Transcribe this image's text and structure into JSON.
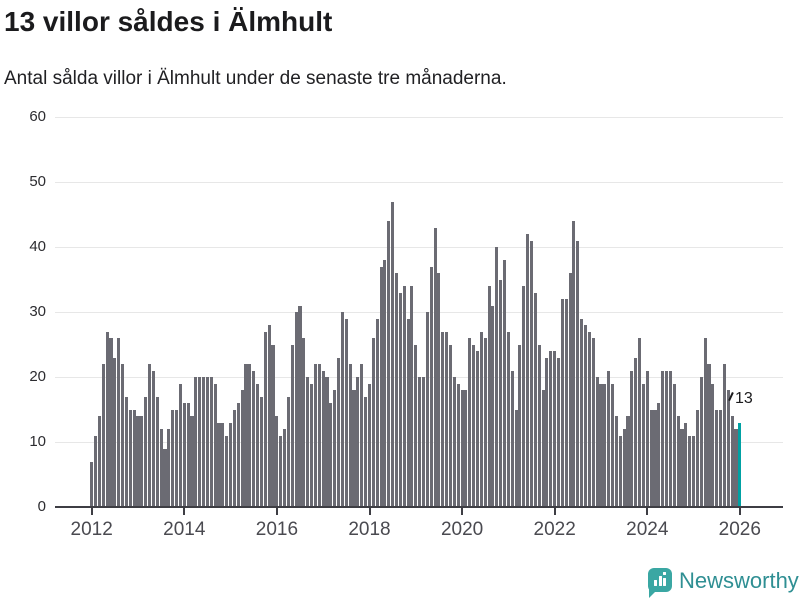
{
  "header": {
    "title": "13 villor såldes i Älmhult",
    "subtitle": "Antal sålda villor i Älmhult under de senaste tre månaderna."
  },
  "chart_data": {
    "type": "bar",
    "title": "13 villor såldes i Älmhult",
    "subtitle": "Antal sålda villor i Älmhult under de senaste tre månaderna.",
    "x_start_label": "2012",
    "x_tick_labels": [
      "2012",
      "2014",
      "2016",
      "2018",
      "2020",
      "2022",
      "2024",
      "2026"
    ],
    "y_ticks": [
      0,
      10,
      20,
      30,
      40,
      50,
      60
    ],
    "ylim": [
      0,
      60
    ],
    "grid": true,
    "frequency": "monthly",
    "values": [
      7,
      11,
      14,
      22,
      27,
      26,
      23,
      26,
      22,
      17,
      15,
      15,
      14,
      14,
      17,
      22,
      21,
      17,
      12,
      9,
      12,
      15,
      15,
      19,
      16,
      16,
      14,
      20,
      20,
      20,
      20,
      20,
      19,
      13,
      13,
      11,
      13,
      15,
      16,
      18,
      22,
      22,
      21,
      19,
      17,
      27,
      28,
      25,
      14,
      11,
      12,
      17,
      25,
      30,
      31,
      26,
      20,
      19,
      22,
      22,
      21,
      20,
      16,
      18,
      23,
      30,
      29,
      22,
      18,
      20,
      22,
      17,
      19,
      26,
      29,
      37,
      38,
      44,
      47,
      36,
      33,
      34,
      29,
      34,
      25,
      20,
      20,
      30,
      37,
      43,
      36,
      27,
      27,
      25,
      20,
      19,
      18,
      18,
      26,
      25,
      24,
      27,
      26,
      34,
      31,
      40,
      35,
      38,
      27,
      21,
      15,
      25,
      34,
      42,
      41,
      33,
      25,
      18,
      23,
      24,
      24,
      23,
      32,
      32,
      36,
      44,
      41,
      29,
      28,
      27,
      26,
      20,
      19,
      19,
      21,
      19,
      14,
      11,
      12,
      14,
      21,
      23,
      26,
      19,
      21,
      15,
      15,
      16,
      21,
      21,
      21,
      19,
      14,
      12,
      13,
      11,
      11,
      15,
      20,
      26,
      22,
      19,
      15,
      15,
      22,
      18,
      14,
      12,
      13
    ],
    "highlight": {
      "index": 168,
      "label": "13",
      "color": "#00a1a3"
    },
    "colors": {
      "bar": "#6b6b73",
      "highlight": "#00a1a3",
      "gridline": "#e7e7e7",
      "axis": "#3e3e44",
      "x_label": "#4a4a50",
      "y_label": "#2c2c30",
      "title": "#1b1b1d"
    },
    "legend": null
  },
  "annotation": {
    "text": "13"
  },
  "footer": {
    "brand": "Newsworthy",
    "brand_color": "#2f8f93",
    "icon_color": "#3aa7a3"
  }
}
